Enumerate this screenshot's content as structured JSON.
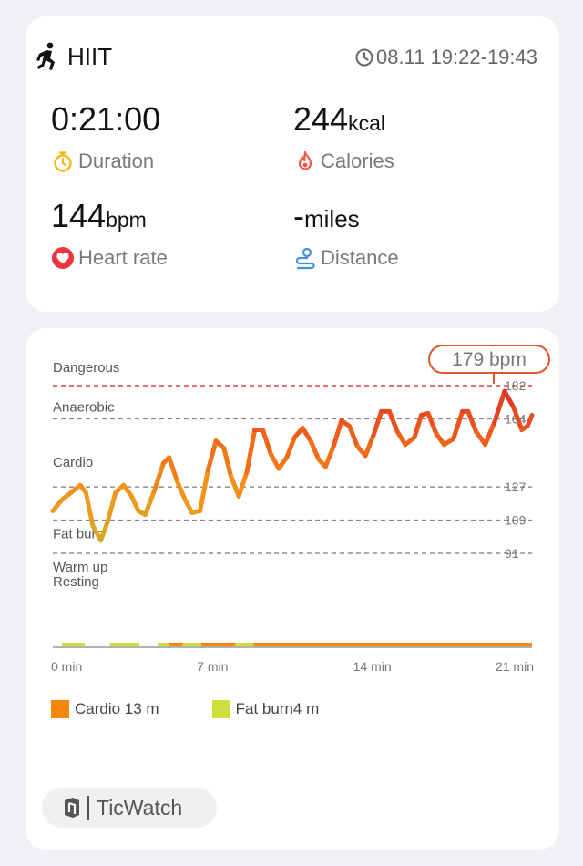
{
  "summary": {
    "activity": "HIIT",
    "time_range": "08.11 19:22-19:43",
    "duration": {
      "value": "0:21:00",
      "unit": "",
      "label": "Duration"
    },
    "calories": {
      "value": "244",
      "unit": "kcal",
      "label": "Calories"
    },
    "heart_rate": {
      "value": "144",
      "unit": "bpm",
      "label": "Heart rate"
    },
    "distance": {
      "value": "-",
      "unit": "miles",
      "label": "Distance"
    }
  },
  "colors": {
    "duration_icon": "#f3b81c",
    "calories_icon": "#ef5a4f",
    "heart_icon": "#e8353f",
    "distance_icon": "#4b8fd8",
    "dangerous": "#d83131",
    "cardio": "#f7860f",
    "fat_burn": "#cfdd3c"
  },
  "icons": {
    "activity": "runner-icon",
    "time": "clock-icon",
    "duration": "stopwatch-icon",
    "calories": "flame-icon",
    "heart_rate": "heart-icon",
    "distance": "route-icon",
    "brand": "ticwatch-logo-icon"
  },
  "chart_data": {
    "type": "line",
    "title": "",
    "xlabel": "",
    "ylabel": "",
    "x_unit": "min",
    "xlim": [
      0,
      21
    ],
    "ylim": [
      40,
      185
    ],
    "x_ticks": [
      {
        "value": 0,
        "label": "0 min"
      },
      {
        "value": 7,
        "label": "7 min"
      },
      {
        "value": 14,
        "label": "14 min"
      },
      {
        "value": 21,
        "label": "21 min"
      }
    ],
    "zones": [
      {
        "name": "Dangerous",
        "threshold": 182,
        "threshold_label": "182",
        "color": "#d83131",
        "dashed": true
      },
      {
        "name": "Anaerobic",
        "threshold": 164,
        "threshold_label": "164",
        "color": "#888888",
        "dashed": true
      },
      {
        "name": "Cardio",
        "threshold": 127,
        "threshold_label": "127",
        "color": "#888888",
        "dashed": true
      },
      {
        "name": "Fat burn",
        "threshold": 109,
        "threshold_label": "109",
        "color": "#888888",
        "dashed": true
      },
      {
        "name": "Warm up",
        "threshold": 91,
        "threshold_label": "91",
        "color": "#888888",
        "dashed": true
      },
      {
        "name": "Resting",
        "threshold": null,
        "threshold_label": "",
        "color": "#888888",
        "dashed": false
      }
    ],
    "max_marker": {
      "x": 19.8,
      "y": 179,
      "label": "179 bpm"
    },
    "series": [
      {
        "values": [
          [
            0.0,
            114
          ],
          [
            0.4,
            120
          ],
          [
            0.8,
            124
          ],
          [
            1.2,
            128
          ],
          [
            1.45,
            124
          ],
          [
            1.75,
            106
          ],
          [
            2.1,
            98
          ],
          [
            2.4,
            108
          ],
          [
            2.75,
            124
          ],
          [
            3.1,
            128
          ],
          [
            3.45,
            122
          ],
          [
            3.75,
            114
          ],
          [
            4.05,
            112
          ],
          [
            4.45,
            125
          ],
          [
            4.85,
            140
          ],
          [
            5.1,
            143
          ],
          [
            5.45,
            130
          ],
          [
            5.8,
            120
          ],
          [
            6.1,
            113
          ],
          [
            6.45,
            114
          ],
          [
            6.8,
            136
          ],
          [
            7.15,
            152
          ],
          [
            7.5,
            148
          ],
          [
            7.8,
            133
          ],
          [
            8.15,
            122
          ],
          [
            8.5,
            135
          ],
          [
            8.85,
            158
          ],
          [
            9.2,
            158
          ],
          [
            9.55,
            145
          ],
          [
            9.9,
            137
          ],
          [
            10.25,
            143
          ],
          [
            10.6,
            154
          ],
          [
            10.95,
            159
          ],
          [
            11.3,
            152
          ],
          [
            11.65,
            142
          ],
          [
            11.95,
            138
          ],
          [
            12.3,
            149
          ],
          [
            12.65,
            163
          ],
          [
            13.0,
            160
          ],
          [
            13.35,
            149
          ],
          [
            13.7,
            144
          ],
          [
            14.05,
            155
          ],
          [
            14.4,
            168
          ],
          [
            14.75,
            168
          ],
          [
            15.1,
            157
          ],
          [
            15.45,
            150
          ],
          [
            15.85,
            154
          ],
          [
            16.15,
            166
          ],
          [
            16.45,
            167
          ],
          [
            16.8,
            156
          ],
          [
            17.15,
            150
          ],
          [
            17.55,
            153
          ],
          [
            17.95,
            168
          ],
          [
            18.2,
            168
          ],
          [
            18.55,
            157
          ],
          [
            18.95,
            150
          ],
          [
            19.35,
            162
          ],
          [
            19.8,
            179
          ],
          [
            20.2,
            170
          ],
          [
            20.55,
            158
          ],
          [
            20.8,
            160
          ],
          [
            21.0,
            166
          ]
        ]
      }
    ],
    "zone_bar": [
      {
        "start": 0.4,
        "end": 1.4,
        "zone": "Fat burn"
      },
      {
        "start": 2.5,
        "end": 3.8,
        "zone": "Fat burn"
      },
      {
        "start": 4.6,
        "end": 5.1,
        "zone": "Fat burn"
      },
      {
        "start": 5.1,
        "end": 5.7,
        "zone": "Cardio"
      },
      {
        "start": 5.7,
        "end": 6.5,
        "zone": "Fat burn"
      },
      {
        "start": 6.5,
        "end": 8.0,
        "zone": "Cardio"
      },
      {
        "start": 8.0,
        "end": 8.8,
        "zone": "Fat burn"
      },
      {
        "start": 8.8,
        "end": 21.0,
        "zone": "Cardio"
      }
    ],
    "legend": [
      {
        "label": "Cardio 13 m",
        "color": "#f7860f"
      },
      {
        "label": "Fat burn4 m",
        "color": "#cfdd3c"
      }
    ],
    "legend_placement": "bottom-left"
  },
  "brand": {
    "label": "TicWatch"
  }
}
